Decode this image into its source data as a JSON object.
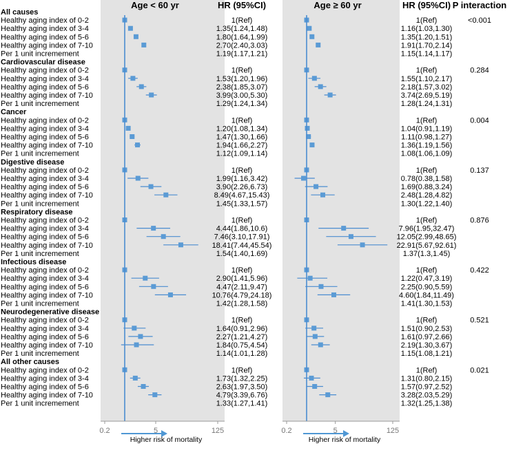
{
  "chart_data": {
    "type": "forest",
    "header": {
      "panel_left": "Age < 60 yr",
      "panel_right": "Age ≥ 60 yr",
      "hr_col": "HR (95%CI)",
      "p_col": "P interaction"
    },
    "axis": {
      "scale": "log",
      "min": 0.2,
      "max": 125,
      "ref": 1,
      "ticks": [
        "0.2",
        "5",
        "125"
      ],
      "tick_values": [
        0.2,
        5,
        125
      ],
      "label": "Higher risk of mortality"
    },
    "colors": {
      "panel_bg": "#e3e3e3",
      "mark": "#5b9bd5",
      "line": "#4a8cd0",
      "arrow": "#4f97d4"
    },
    "groups": [
      {
        "title": "All causes",
        "p": "<0.001",
        "rows": [
          {
            "label": "Healthy aging index of 0-2",
            "young": {
              "hr": 1,
              "lo": null,
              "hi": null,
              "text": "1(Ref)"
            },
            "old": {
              "hr": 1,
              "lo": null,
              "hi": null,
              "text": "1(Ref)"
            }
          },
          {
            "label": "Healthy aging index of 3-4",
            "young": {
              "hr": 1.35,
              "lo": 1.24,
              "hi": 1.48,
              "text": "1.35(1.24,1.48)"
            },
            "old": {
              "hr": 1.16,
              "lo": 1.03,
              "hi": 1.3,
              "text": "1.16(1.03,1.30)"
            }
          },
          {
            "label": "Healthy aging index of 5-6",
            "young": {
              "hr": 1.8,
              "lo": 1.64,
              "hi": 1.99,
              "text": "1.80(1.64,1.99)"
            },
            "old": {
              "hr": 1.35,
              "lo": 1.2,
              "hi": 1.51,
              "text": "1.35(1.20,1.51)"
            }
          },
          {
            "label": "Healthy aging index of 7-10",
            "young": {
              "hr": 2.7,
              "lo": 2.4,
              "hi": 3.03,
              "text": "2.70(2.40,3.03)"
            },
            "old": {
              "hr": 1.91,
              "lo": 1.7,
              "hi": 2.14,
              "text": "1.91(1.70,2.14)"
            }
          },
          {
            "label": "Per 1 unit incremement",
            "young": {
              "hr": null,
              "lo": null,
              "hi": null,
              "text": "1.19(1.17,1.21)"
            },
            "old": {
              "hr": null,
              "lo": null,
              "hi": null,
              "text": "1.15(1.14,1.17)"
            }
          }
        ]
      },
      {
        "title": "Cardiovascular disease",
        "p": "0.284",
        "rows": [
          {
            "label": "Healthy aging index of 0-2",
            "young": {
              "hr": 1,
              "lo": null,
              "hi": null,
              "text": "1(Ref)"
            },
            "old": {
              "hr": 1,
              "lo": null,
              "hi": null,
              "text": "1(Ref)"
            }
          },
          {
            "label": "Healthy aging index of 3-4",
            "young": {
              "hr": 1.53,
              "lo": 1.2,
              "hi": 1.96,
              "text": "1.53(1.20,1.96)"
            },
            "old": {
              "hr": 1.55,
              "lo": 1.1,
              "hi": 2.17,
              "text": "1.55(1.10,2.17)"
            }
          },
          {
            "label": "Healthy aging index of 5-6",
            "young": {
              "hr": 2.38,
              "lo": 1.85,
              "hi": 3.07,
              "text": "2.38(1.85,3.07)"
            },
            "old": {
              "hr": 2.18,
              "lo": 1.57,
              "hi": 3.02,
              "text": "2.18(1.57,3.02)"
            }
          },
          {
            "label": "Healthy aging index of 7-10",
            "young": {
              "hr": 3.99,
              "lo": 3.0,
              "hi": 5.3,
              "text": "3.99(3.00,5.30)"
            },
            "old": {
              "hr": 3.74,
              "lo": 2.69,
              "hi": 5.19,
              "text": "3.74(2.69,5.19)"
            }
          },
          {
            "label": "Per 1 unit incremement",
            "young": {
              "hr": null,
              "lo": null,
              "hi": null,
              "text": "1.29(1.24,1.34)"
            },
            "old": {
              "hr": null,
              "lo": null,
              "hi": null,
              "text": "1.28(1.24,1.31)"
            }
          }
        ]
      },
      {
        "title": "Cancer",
        "p": "0.004",
        "rows": [
          {
            "label": "Healthy aging index of 0-2",
            "young": {
              "hr": 1,
              "lo": null,
              "hi": null,
              "text": "1(Ref)"
            },
            "old": {
              "hr": 1,
              "lo": null,
              "hi": null,
              "text": "1(Ref)"
            }
          },
          {
            "label": "Healthy aging index of 3-4",
            "young": {
              "hr": 1.2,
              "lo": 1.08,
              "hi": 1.34,
              "text": "1.20(1.08,1.34)"
            },
            "old": {
              "hr": 1.04,
              "lo": 0.91,
              "hi": 1.19,
              "text": "1.04(0.91,1.19)"
            }
          },
          {
            "label": "Healthy aging index of 5-6",
            "young": {
              "hr": 1.47,
              "lo": 1.3,
              "hi": 1.66,
              "text": "1.47(1.30,1.66)"
            },
            "old": {
              "hr": 1.11,
              "lo": 0.98,
              "hi": 1.27,
              "text": "1.11(0.98,1.27)"
            }
          },
          {
            "label": "Healthy aging index of 7-10",
            "young": {
              "hr": 1.94,
              "lo": 1.66,
              "hi": 2.27,
              "text": "1.94(1.66,2.27)"
            },
            "old": {
              "hr": 1.36,
              "lo": 1.19,
              "hi": 1.56,
              "text": "1.36(1.19,1.56)"
            }
          },
          {
            "label": "Per 1 unit incremement",
            "young": {
              "hr": null,
              "lo": null,
              "hi": null,
              "text": "1.12(1.09,1.14)"
            },
            "old": {
              "hr": null,
              "lo": null,
              "hi": null,
              "text": "1.08(1.06,1.09)"
            }
          }
        ]
      },
      {
        "title": "Digestive disease",
        "p": "0.137",
        "rows": [
          {
            "label": "Healthy aging index of 0-2",
            "young": {
              "hr": 1,
              "lo": null,
              "hi": null,
              "text": "1(Ref)"
            },
            "old": {
              "hr": 1,
              "lo": null,
              "hi": null,
              "text": "1(Ref)"
            }
          },
          {
            "label": "Healthy aging index of 3-4",
            "young": {
              "hr": 1.99,
              "lo": 1.16,
              "hi": 3.42,
              "text": "1.99(1.16,3.42)"
            },
            "old": {
              "hr": 0.78,
              "lo": 0.38,
              "hi": 1.58,
              "text": "0.78(0.38,1.58)"
            }
          },
          {
            "label": "Healthy aging index of 5-6",
            "young": {
              "hr": 3.9,
              "lo": 2.26,
              "hi": 6.73,
              "text": "3.90(2.26,6.73)"
            },
            "old": {
              "hr": 1.69,
              "lo": 0.88,
              "hi": 3.24,
              "text": "1.69(0.88,3.24)"
            }
          },
          {
            "label": "Healthy aging index of 7-10",
            "young": {
              "hr": 8.49,
              "lo": 4.67,
              "hi": 15.43,
              "text": "8.49(4.67,15.43)"
            },
            "old": {
              "hr": 2.48,
              "lo": 1.28,
              "hi": 4.82,
              "text": "2.48(1.28,4.82)"
            }
          },
          {
            "label": "Per 1 unit incremement",
            "young": {
              "hr": null,
              "lo": null,
              "hi": null,
              "text": "1.45(1.33,1.57)"
            },
            "old": {
              "hr": null,
              "lo": null,
              "hi": null,
              "text": "1.30(1.22,1.40)"
            }
          }
        ]
      },
      {
        "title": "Respiratory disease",
        "p": "0.876",
        "rows": [
          {
            "label": "Healthy aging index of 0-2",
            "young": {
              "hr": 1,
              "lo": null,
              "hi": null,
              "text": "1(Ref)"
            },
            "old": {
              "hr": 1,
              "lo": null,
              "hi": null,
              "text": "1(Ref)"
            }
          },
          {
            "label": "Healthy aging index of 3-4",
            "young": {
              "hr": 4.44,
              "lo": 1.86,
              "hi": 10.6,
              "text": "4.44(1.86,10.6)"
            },
            "old": {
              "hr": 7.96,
              "lo": 1.95,
              "hi": 32.47,
              "text": "7.96(1.95,32.47)"
            }
          },
          {
            "label": "Healthy aging index of 5-6",
            "young": {
              "hr": 7.46,
              "lo": 3.1,
              "hi": 17.91,
              "text": "7.46(3.10,17.91)"
            },
            "old": {
              "hr": 12.05,
              "lo": 2.99,
              "hi": 48.65,
              "text": "12.05(2.99,48.65)"
            }
          },
          {
            "label": "Healthy aging index of 7-10",
            "young": {
              "hr": 18.41,
              "lo": 7.44,
              "hi": 45.54,
              "text": "18.41(7.44,45.54)"
            },
            "old": {
              "hr": 22.91,
              "lo": 5.67,
              "hi": 92.61,
              "text": "22.91(5.67,92.61)"
            }
          },
          {
            "label": "Per 1 unit incremement",
            "young": {
              "hr": null,
              "lo": null,
              "hi": null,
              "text": "1.54(1.40,1.69)"
            },
            "old": {
              "hr": null,
              "lo": null,
              "hi": null,
              "text": "1.37(1.3,1.45)"
            }
          }
        ]
      },
      {
        "title": "Infectious disease",
        "p": "0.422",
        "rows": [
          {
            "label": "Healthy aging index of 0-2",
            "young": {
              "hr": 1,
              "lo": null,
              "hi": null,
              "text": "1(Ref)"
            },
            "old": {
              "hr": 1,
              "lo": null,
              "hi": null,
              "text": "1(Ref)"
            }
          },
          {
            "label": "Healthy aging index of 3-4",
            "young": {
              "hr": 2.9,
              "lo": 1.41,
              "hi": 5.96,
              "text": "2.90(1.41,5.96)"
            },
            "old": {
              "hr": 1.22,
              "lo": 0.47,
              "hi": 3.19,
              "text": "1.22(0.47,3.19)"
            }
          },
          {
            "label": "Healthy aging index of 5-6",
            "young": {
              "hr": 4.47,
              "lo": 2.11,
              "hi": 9.47,
              "text": "4.47(2.11,9.47)"
            },
            "old": {
              "hr": 2.25,
              "lo": 0.9,
              "hi": 5.59,
              "text": "2.25(0.90,5.59)"
            }
          },
          {
            "label": "Healthy aging index of 7-10",
            "young": {
              "hr": 10.76,
              "lo": 4.79,
              "hi": 24.18,
              "text": "10.76(4.79,24.18)"
            },
            "old": {
              "hr": 4.6,
              "lo": 1.84,
              "hi": 11.49,
              "text": "4.60(1.84,11.49)"
            }
          },
          {
            "label": "Per 1 unit incremement",
            "young": {
              "hr": null,
              "lo": null,
              "hi": null,
              "text": "1.42(1.28,1.58)"
            },
            "old": {
              "hr": null,
              "lo": null,
              "hi": null,
              "text": "1.41(1.30,1.53)"
            }
          }
        ]
      },
      {
        "title": "Neurodegenerative disease",
        "p": "0.521",
        "rows": [
          {
            "label": "Healthy aging index of 0-2",
            "young": {
              "hr": 1,
              "lo": null,
              "hi": null,
              "text": "1(Ref)"
            },
            "old": {
              "hr": 1,
              "lo": null,
              "hi": null,
              "text": "1(Ref)"
            }
          },
          {
            "label": "Healthy aging index of 3-4",
            "young": {
              "hr": 1.64,
              "lo": 0.91,
              "hi": 2.96,
              "text": "1.64(0.91,2.96)"
            },
            "old": {
              "hr": 1.51,
              "lo": 0.9,
              "hi": 2.53,
              "text": "1.51(0.90,2.53)"
            }
          },
          {
            "label": "Healthy aging index of 5-6",
            "young": {
              "hr": 2.27,
              "lo": 1.21,
              "hi": 4.27,
              "text": "2.27(1.21,4.27)"
            },
            "old": {
              "hr": 1.61,
              "lo": 0.97,
              "hi": 2.66,
              "text": "1.61(0.97,2.66)"
            }
          },
          {
            "label": "Healthy aging index of 7-10",
            "young": {
              "hr": 1.84,
              "lo": 0.75,
              "hi": 4.54,
              "text": "1.84(0.75,4.54)"
            },
            "old": {
              "hr": 2.19,
              "lo": 1.3,
              "hi": 3.67,
              "text": "2.19(1.30,3.67)"
            }
          },
          {
            "label": "Per 1 unit incremement",
            "young": {
              "hr": null,
              "lo": null,
              "hi": null,
              "text": "1.14(1.01,1.28)"
            },
            "old": {
              "hr": null,
              "lo": null,
              "hi": null,
              "text": "1.15(1.08,1.21)"
            }
          }
        ]
      },
      {
        "title": "All other causes",
        "p": "0.021",
        "rows": [
          {
            "label": "Healthy aging index of 0-2",
            "young": {
              "hr": 1,
              "lo": null,
              "hi": null,
              "text": "1(Ref)"
            },
            "old": {
              "hr": 1,
              "lo": null,
              "hi": null,
              "text": "1(Ref)"
            }
          },
          {
            "label": "Healthy aging index of 3-4",
            "young": {
              "hr": 1.73,
              "lo": 1.32,
              "hi": 2.25,
              "text": "1.73(1.32,2.25)"
            },
            "old": {
              "hr": 1.31,
              "lo": 0.8,
              "hi": 2.15,
              "text": "1.31(0.80,2.15)"
            }
          },
          {
            "label": "Healthy aging index of 5-6",
            "young": {
              "hr": 2.63,
              "lo": 1.97,
              "hi": 3.5,
              "text": "2.63(1.97,3.50)"
            },
            "old": {
              "hr": 1.57,
              "lo": 0.97,
              "hi": 2.52,
              "text": "1.57(0.97,2.52)"
            }
          },
          {
            "label": "Healthy aging index of 7-10",
            "young": {
              "hr": 4.79,
              "lo": 3.39,
              "hi": 6.76,
              "text": "4.79(3.39,6.76)"
            },
            "old": {
              "hr": 3.28,
              "lo": 2.03,
              "hi": 5.29,
              "text": "3.28(2.03,5.29)"
            }
          },
          {
            "label": "Per 1 unit incremement",
            "young": {
              "hr": null,
              "lo": null,
              "hi": null,
              "text": "1.33(1.27,1.41)"
            },
            "old": {
              "hr": null,
              "lo": null,
              "hi": null,
              "text": "1.32(1.25,1.38)"
            }
          }
        ]
      }
    ]
  }
}
